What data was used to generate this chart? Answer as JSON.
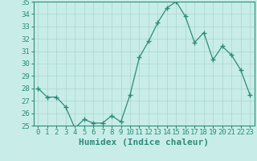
{
  "x": [
    0,
    1,
    2,
    3,
    4,
    5,
    6,
    7,
    8,
    9,
    10,
    11,
    12,
    13,
    14,
    15,
    16,
    17,
    18,
    19,
    20,
    21,
    22,
    23
  ],
  "y": [
    28,
    27.3,
    27.3,
    26.5,
    24.8,
    25.5,
    25.2,
    25.2,
    25.8,
    25.3,
    27.5,
    30.5,
    31.8,
    33.3,
    34.5,
    35.0,
    33.8,
    31.7,
    32.5,
    30.3,
    31.4,
    30.7,
    29.5,
    27.5
  ],
  "line_color": "#2e8b7a",
  "marker": "+",
  "markersize": 4,
  "bg_color": "#c8ede8",
  "grid_color": "#aad4ce",
  "xlabel": "Humidex (Indice chaleur)",
  "ylim": [
    25,
    35
  ],
  "xlim": [
    -0.5,
    23.5
  ],
  "yticks": [
    25,
    26,
    27,
    28,
    29,
    30,
    31,
    32,
    33,
    34,
    35
  ],
  "xticks": [
    0,
    1,
    2,
    3,
    4,
    5,
    6,
    7,
    8,
    9,
    10,
    11,
    12,
    13,
    14,
    15,
    16,
    17,
    18,
    19,
    20,
    21,
    22,
    23
  ],
  "label_fontsize": 8,
  "tick_fontsize": 6.5
}
